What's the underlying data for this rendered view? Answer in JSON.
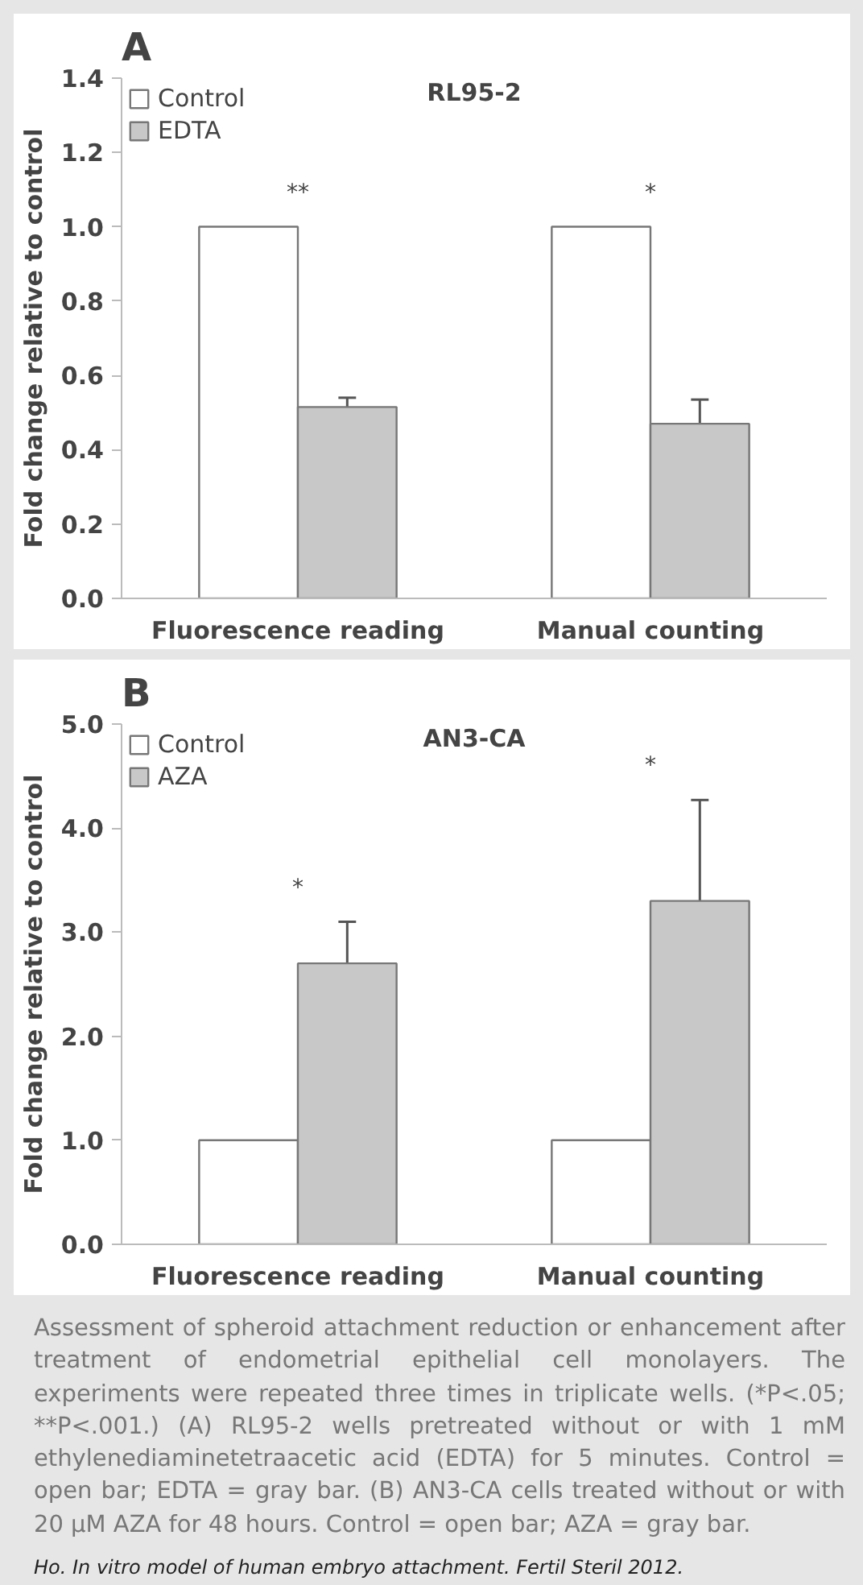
{
  "chart_data": [
    {
      "type": "bar",
      "title": "A",
      "subtitle": "RL95-2",
      "ylabel": "Fold change relative to control",
      "categories": [
        "Fluorescence reading",
        "Manual counting"
      ],
      "series": [
        {
          "name": "Control",
          "color": "#ffffff",
          "values": [
            1.0,
            1.0
          ]
        },
        {
          "name": "EDTA",
          "color": "#c8c8c8",
          "values": [
            0.515,
            0.47
          ],
          "errors": [
            0.025,
            0.065
          ]
        }
      ],
      "ylim": [
        0,
        1.4
      ],
      "yticks": [
        {
          "value": 0,
          "label": "0.0"
        },
        {
          "value": 0.2,
          "label": "0.2"
        },
        {
          "value": 0.4,
          "label": "0.4"
        },
        {
          "value": 0.6,
          "label": "0.6"
        },
        {
          "value": 0.8,
          "label": "0.8"
        },
        {
          "value": 1.0,
          "label": "1.0"
        },
        {
          "value": 1.2,
          "label": "1.2"
        },
        {
          "value": 1.4,
          "label": "1.4"
        }
      ],
      "legend": "top left",
      "grid": false,
      "annotations": [
        "**",
        "*"
      ]
    },
    {
      "type": "bar",
      "title": "B",
      "subtitle": "AN3-CA",
      "ylabel": "Fold change relative to control",
      "categories": [
        "Fluorescence reading",
        "Manual counting"
      ],
      "series": [
        {
          "name": "Control",
          "color": "#ffffff",
          "values": [
            1.0,
            1.0
          ]
        },
        {
          "name": "AZA",
          "color": "#c8c8c8",
          "values": [
            2.7,
            3.3
          ],
          "errors": [
            0.4,
            0.97
          ]
        }
      ],
      "ylim": [
        0,
        5
      ],
      "yticks": [
        {
          "value": 0,
          "label": "0.0"
        },
        {
          "value": 1,
          "label": "1.0"
        },
        {
          "value": 2,
          "label": "2.0"
        },
        {
          "value": 3,
          "label": "3.0"
        },
        {
          "value": 4,
          "label": "4.0"
        },
        {
          "value": 5,
          "label": "5.0"
        }
      ],
      "legend": "top left",
      "grid": false,
      "annotations": [
        "*",
        "*",
        "Assessment of spheroid attachment reduction or enhancement after treatment of endometrial epithelial cell monolayers. The experiments were repeated three times in triplicate wells. (*P<.05; **P<.001.) (A) RL95-2 wells pretreated without or with 1 mM ethylenediaminetetraacetic acid (EDTA) for 5 minutes. Control = open bar; EDTA = gray bar. (B) AN3-CA cells treated without or with 20 μM AZA for 48 hours. Control = open bar; AZA = gray bar.",
        "Ho. In vitro model of human embryo attachment. Fertil Steril 2012."
      ]
    }
  ]
}
